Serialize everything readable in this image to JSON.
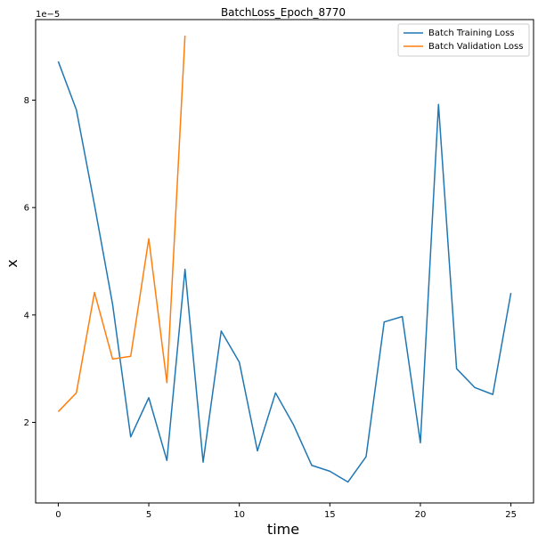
{
  "chart_data": {
    "type": "line",
    "title": "BatchLoss_Epoch_8770",
    "xlabel": "time",
    "ylabel": "x",
    "y_scale_label": "1e−5",
    "xlim": [
      -1.25,
      26.25
    ],
    "ylim": [
      5e-06,
      9.5e-05
    ],
    "x_ticks": [
      0,
      5,
      10,
      15,
      20,
      25
    ],
    "y_ticks": [
      2e-05,
      4e-05,
      6e-05,
      8e-05
    ],
    "y_tick_labels": [
      "2",
      "4",
      "6",
      "8"
    ],
    "legend_position": "top-right",
    "grid": false,
    "series": [
      {
        "name": "Batch Training Loss",
        "color": "#1f77b4",
        "x": [
          0,
          1,
          2,
          3,
          4,
          5,
          6,
          7,
          8,
          9,
          10,
          11,
          12,
          13,
          14,
          15,
          16,
          17,
          18,
          19,
          20,
          21,
          22,
          23,
          24,
          25
        ],
        "values": [
          8.72e-05,
          7.82e-05,
          6.05e-05,
          4.2e-05,
          1.73e-05,
          2.46e-05,
          1.29e-05,
          4.85e-05,
          1.26e-05,
          3.7e-05,
          3.12e-05,
          1.47e-05,
          2.55e-05,
          1.95e-05,
          1.2e-05,
          1.09e-05,
          8.9e-06,
          1.36e-05,
          3.87e-05,
          3.97e-05,
          1.62e-05,
          7.92e-05,
          3e-05,
          2.65e-05,
          2.52e-05,
          4.41e-05
        ]
      },
      {
        "name": "Batch Validation Loss",
        "color": "#ff7f0e",
        "x": [
          0,
          1,
          2,
          3,
          4,
          5,
          6,
          7
        ],
        "values": [
          2.2e-05,
          2.55e-05,
          4.42e-05,
          3.18e-05,
          3.23e-05,
          5.42e-05,
          2.74e-05,
          9.2e-05
        ]
      }
    ]
  }
}
